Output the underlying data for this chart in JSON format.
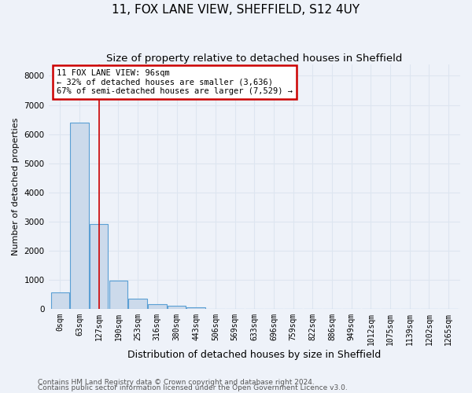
{
  "title": "11, FOX LANE VIEW, SHEFFIELD, S12 4UY",
  "subtitle": "Size of property relative to detached houses in Sheffield",
  "xlabel": "Distribution of detached houses by size in Sheffield",
  "ylabel": "Number of detached properties",
  "footnote1": "Contains HM Land Registry data © Crown copyright and database right 2024.",
  "footnote2": "Contains public sector information licensed under the Open Government Licence v3.0.",
  "bar_labels": [
    "0sqm",
    "63sqm",
    "127sqm",
    "190sqm",
    "253sqm",
    "316sqm",
    "380sqm",
    "443sqm",
    "506sqm",
    "569sqm",
    "633sqm",
    "696sqm",
    "759sqm",
    "822sqm",
    "886sqm",
    "949sqm",
    "1012sqm",
    "1075sqm",
    "1139sqm",
    "1202sqm",
    "1265sqm"
  ],
  "bar_values": [
    570,
    6400,
    2920,
    970,
    360,
    160,
    100,
    65,
    0,
    0,
    0,
    0,
    0,
    0,
    0,
    0,
    0,
    0,
    0,
    0,
    0
  ],
  "bar_color": "#ccdaeb",
  "bar_edge_color": "#5a9fd4",
  "grid_color": "#dde5f0",
  "background_color": "#eef2f9",
  "property_line_x": 2.0,
  "annotation_text": "11 FOX LANE VIEW: 96sqm\n← 32% of detached houses are smaller (3,636)\n67% of semi-detached houses are larger (7,529) →",
  "annotation_box_color": "#ffffff",
  "annotation_border_color": "#cc0000",
  "red_line_color": "#cc0000",
  "ylim": [
    0,
    8400
  ],
  "yticks": [
    0,
    1000,
    2000,
    3000,
    4000,
    5000,
    6000,
    7000,
    8000
  ],
  "title_fontsize": 11,
  "subtitle_fontsize": 9.5,
  "xlabel_fontsize": 9,
  "ylabel_fontsize": 8,
  "tick_fontsize": 7,
  "footnote_fontsize": 6.5,
  "annotation_fontsize": 7.5
}
